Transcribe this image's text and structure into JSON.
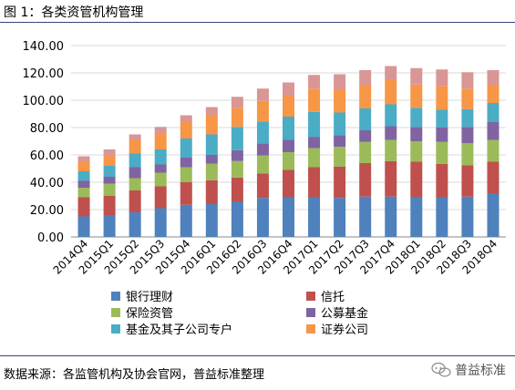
{
  "figure": {
    "title": "图 1：各类资管机构管理",
    "source": "数据来源：各监管机构及协会官网，普益标准整理",
    "watermark": "普益标准",
    "watermark_icon": "chat-bubble-icon"
  },
  "chart_data": {
    "type": "bar",
    "stacked": true,
    "title": "",
    "xlabel": "",
    "ylabel": "",
    "ylim": [
      0,
      140
    ],
    "yticks": [
      "0.00",
      "20.00",
      "40.00",
      "60.00",
      "80.00",
      "100.00",
      "120.00",
      "140.00"
    ],
    "grid": true,
    "legend_position": "bottom",
    "categories": [
      "2014Q4",
      "2015Q1",
      "2015Q2",
      "2015Q3",
      "2015Q4",
      "2016Q1",
      "2016Q2",
      "2016Q3",
      "2016Q4",
      "2017Q1",
      "2017Q2",
      "2017Q3",
      "2017Q4",
      "2018Q1",
      "2018Q2",
      "2018Q3",
      "2018Q4"
    ],
    "series": [
      {
        "name": "银行理财",
        "color": "#4f81bd",
        "values": [
          15,
          16,
          18,
          21,
          23.5,
          24,
          26,
          28.5,
          29,
          29,
          28.5,
          29.5,
          29.5,
          29,
          29,
          29.5,
          32
        ]
      },
      {
        "name": "信托",
        "color": "#c0504d",
        "values": [
          14,
          14,
          16,
          16,
          16.5,
          17.5,
          17.5,
          18,
          20,
          22,
          23,
          24.5,
          26,
          26,
          24.5,
          23,
          23
        ]
      },
      {
        "name": "保险资管",
        "color": "#9bbb59",
        "values": [
          7,
          9,
          9,
          10,
          11,
          12,
          12,
          13,
          13,
          14,
          14.5,
          15.5,
          15.5,
          15,
          16,
          16,
          16
        ]
      },
      {
        "name": "公募基金",
        "color": "#8064a2",
        "values": [
          5,
          5,
          8,
          6,
          7,
          6.5,
          8,
          9,
          9,
          8,
          8.5,
          8.5,
          10,
          10.5,
          10.5,
          12,
          13
        ]
      },
      {
        "name": "基金及其子公司专户",
        "color": "#4bacc6",
        "values": [
          7,
          8,
          10,
          11,
          14,
          15,
          17,
          16,
          17,
          18.5,
          16.5,
          16,
          16,
          14,
          13,
          13,
          14
        ]
      },
      {
        "name": "证券公司",
        "color": "#f79646",
        "values": [
          7,
          7,
          10,
          12,
          12,
          14,
          14,
          15,
          15,
          17,
          17,
          17,
          18,
          17,
          17.5,
          15,
          13
        ]
      },
      {
        "name": "",
        "color": "#d99694",
        "values": [
          4,
          5,
          4,
          4.5,
          5,
          6,
          8,
          9,
          10,
          10,
          11,
          11,
          10,
          12,
          12,
          12,
          11
        ]
      }
    ]
  }
}
